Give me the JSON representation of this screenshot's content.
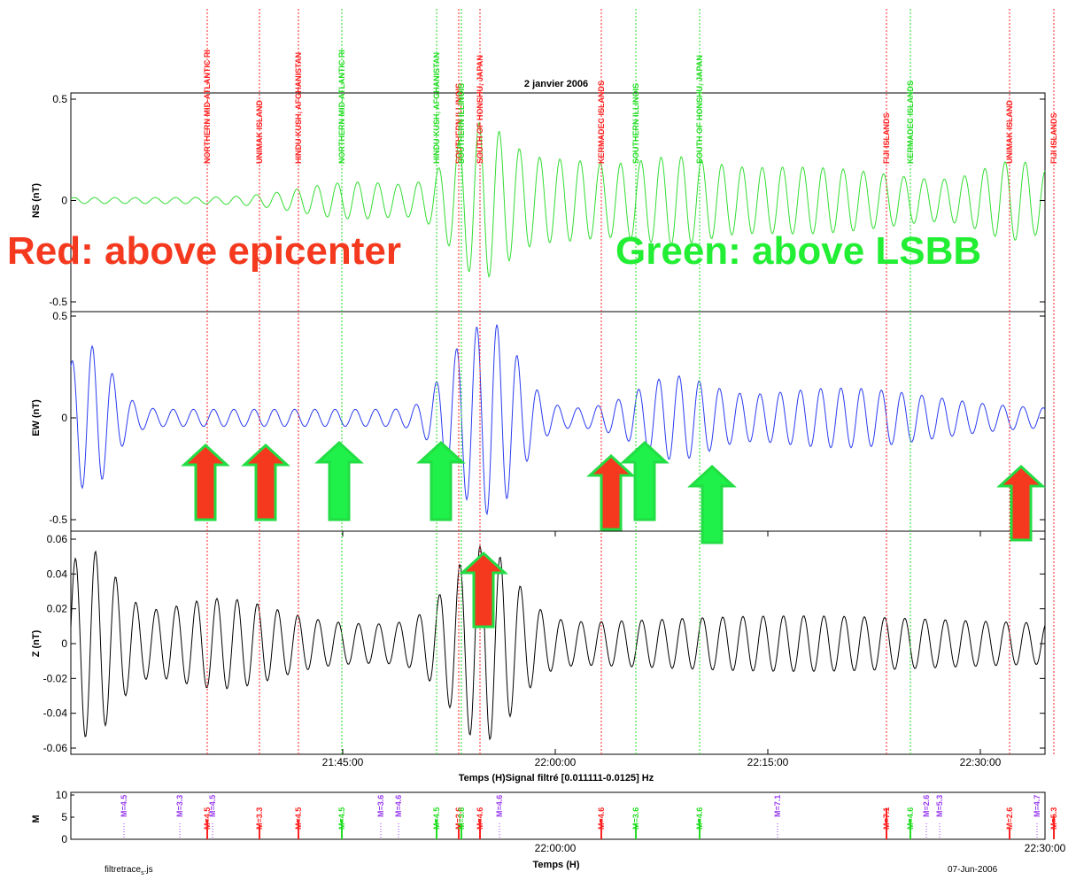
{
  "title": "2 janvier 2006",
  "xlabel_top": "Temps (H)Signal filtré [0.011111-0.0125] Hz",
  "xlabel_bottom": "Temps (H)",
  "footer_left": "filtretrace",
  "footer_left_sub": "s",
  "footer_left_suffix": "js",
  "footer_right": "07-Jun-2006",
  "legend_red": "Red: above epicenter",
  "legend_green": "Green: above LSBB",
  "colors": {
    "red": "#ff2020",
    "green": "#22dd22",
    "purple": "#9a3df0",
    "ns_trace": "#33dd33",
    "ew_trace": "#2a3cf0",
    "z_trace": "#000000",
    "arrow_red": "#f4391f",
    "arrow_green": "#1ff04a"
  },
  "chart_data": [
    {
      "type": "line",
      "panel": "NS",
      "ylabel": "NS (nT)",
      "ylim": [
        -0.5,
        0.5
      ],
      "yticks": [
        "0.5",
        "0",
        "-0.5"
      ],
      "x_range_hours": [
        "21:36",
        "22:30"
      ],
      "series": [
        {
          "color": "#33dd33",
          "amplitude_approx": 0.3
        }
      ]
    },
    {
      "type": "line",
      "panel": "EW",
      "ylabel": "EW (nT)",
      "ylim": [
        -0.5,
        0.5
      ],
      "yticks": [
        "0.5",
        "0",
        "-0.5"
      ],
      "series": [
        {
          "color": "#2a3cf0",
          "amplitude_approx": 0.42
        }
      ]
    },
    {
      "type": "line",
      "panel": "Z",
      "ylabel": "Z (nT)",
      "ylim": [
        -0.06,
        0.06
      ],
      "yticks": [
        "0.06",
        "0.04",
        "0.02",
        "0",
        "-0.02",
        "-0.04",
        "-0.06"
      ],
      "xticks": [
        "21:45:00",
        "22:00:00",
        "22:15:00",
        "22:30:00"
      ],
      "series": [
        {
          "color": "#000000",
          "amplitude_approx": 0.05
        }
      ]
    },
    {
      "type": "bar",
      "panel": "M",
      "ylabel": "M",
      "ylim": [
        0,
        10
      ],
      "yticks": [
        "10",
        "5",
        "0"
      ],
      "xticks": [
        "22:00:00",
        "22:30:00"
      ],
      "events": [
        {
          "time": "21:43:32",
          "label": "NORTHERN MID-ATLANTIC RI",
          "color": "red",
          "mag": "M=4.5"
        },
        {
          "time": "21:47:00",
          "label": "UNIMAK ISLAND",
          "color": "red",
          "mag": "M=3.3"
        },
        {
          "time": "21:49:30",
          "label": "HINDU KUSH, AFGHANISTAN",
          "color": "red",
          "mag": "M=4.5"
        },
        {
          "time": "21:52:19",
          "label": "NORTHERN MID-ATLANTIC RI",
          "color": "green",
          "mag": "M=4.5"
        },
        {
          "time": "21:58:31",
          "label": "HINDU KUSH, AFGHANISTAN",
          "color": "green",
          "mag": "M=4.5"
        },
        {
          "time": "21:59:51",
          "label": "SOUTHERN ILLINOIS",
          "color": "red",
          "mag": "M=3.6"
        },
        {
          "time": "21:59:58",
          "label": "SOUTHERN ILLINOIS",
          "color": "green",
          "mag": "M=3.6"
        },
        {
          "time": "22:01:18",
          "label": "SOUTH OF HONSHU, JAPAN",
          "color": "red",
          "mag": "M=4.6"
        },
        {
          "time": "22:09:15",
          "label": "KERMADEC ISLANDS",
          "color": "red",
          "mag": "M=4.6"
        },
        {
          "time": "22:11:30",
          "label": "SOUTHERN ILLINOIS",
          "color": "green",
          "mag": "M=3.6"
        },
        {
          "time": "22:15:37",
          "label": "SOUTH OF HONSHU, JAPAN",
          "color": "green",
          "mag": "M=4.6"
        },
        {
          "time": "22:27:35",
          "label": "FIJI ISLANDS",
          "color": "red",
          "mag": "M=7.1"
        },
        {
          "time": "22:29:12",
          "label": "KERMADEC ISLANDS",
          "color": "green",
          "mag": "M=4.6"
        },
        {
          "time": "22:35:45",
          "label": "UNIMAK ISLAND",
          "color": "red",
          "mag": "M=2.6"
        },
        {
          "time": "22:38:00",
          "label": "FIJI ISLANDS",
          "color": "red",
          "mag": "M=5.3"
        }
      ],
      "purple_mags": [
        "M=4.5",
        "M=3.3",
        "M=4.5",
        "M=3.6",
        "M=4.6",
        "M=4.6",
        "M=7.1",
        "M=2.6",
        "M=5.3",
        "M=4.7"
      ]
    }
  ]
}
